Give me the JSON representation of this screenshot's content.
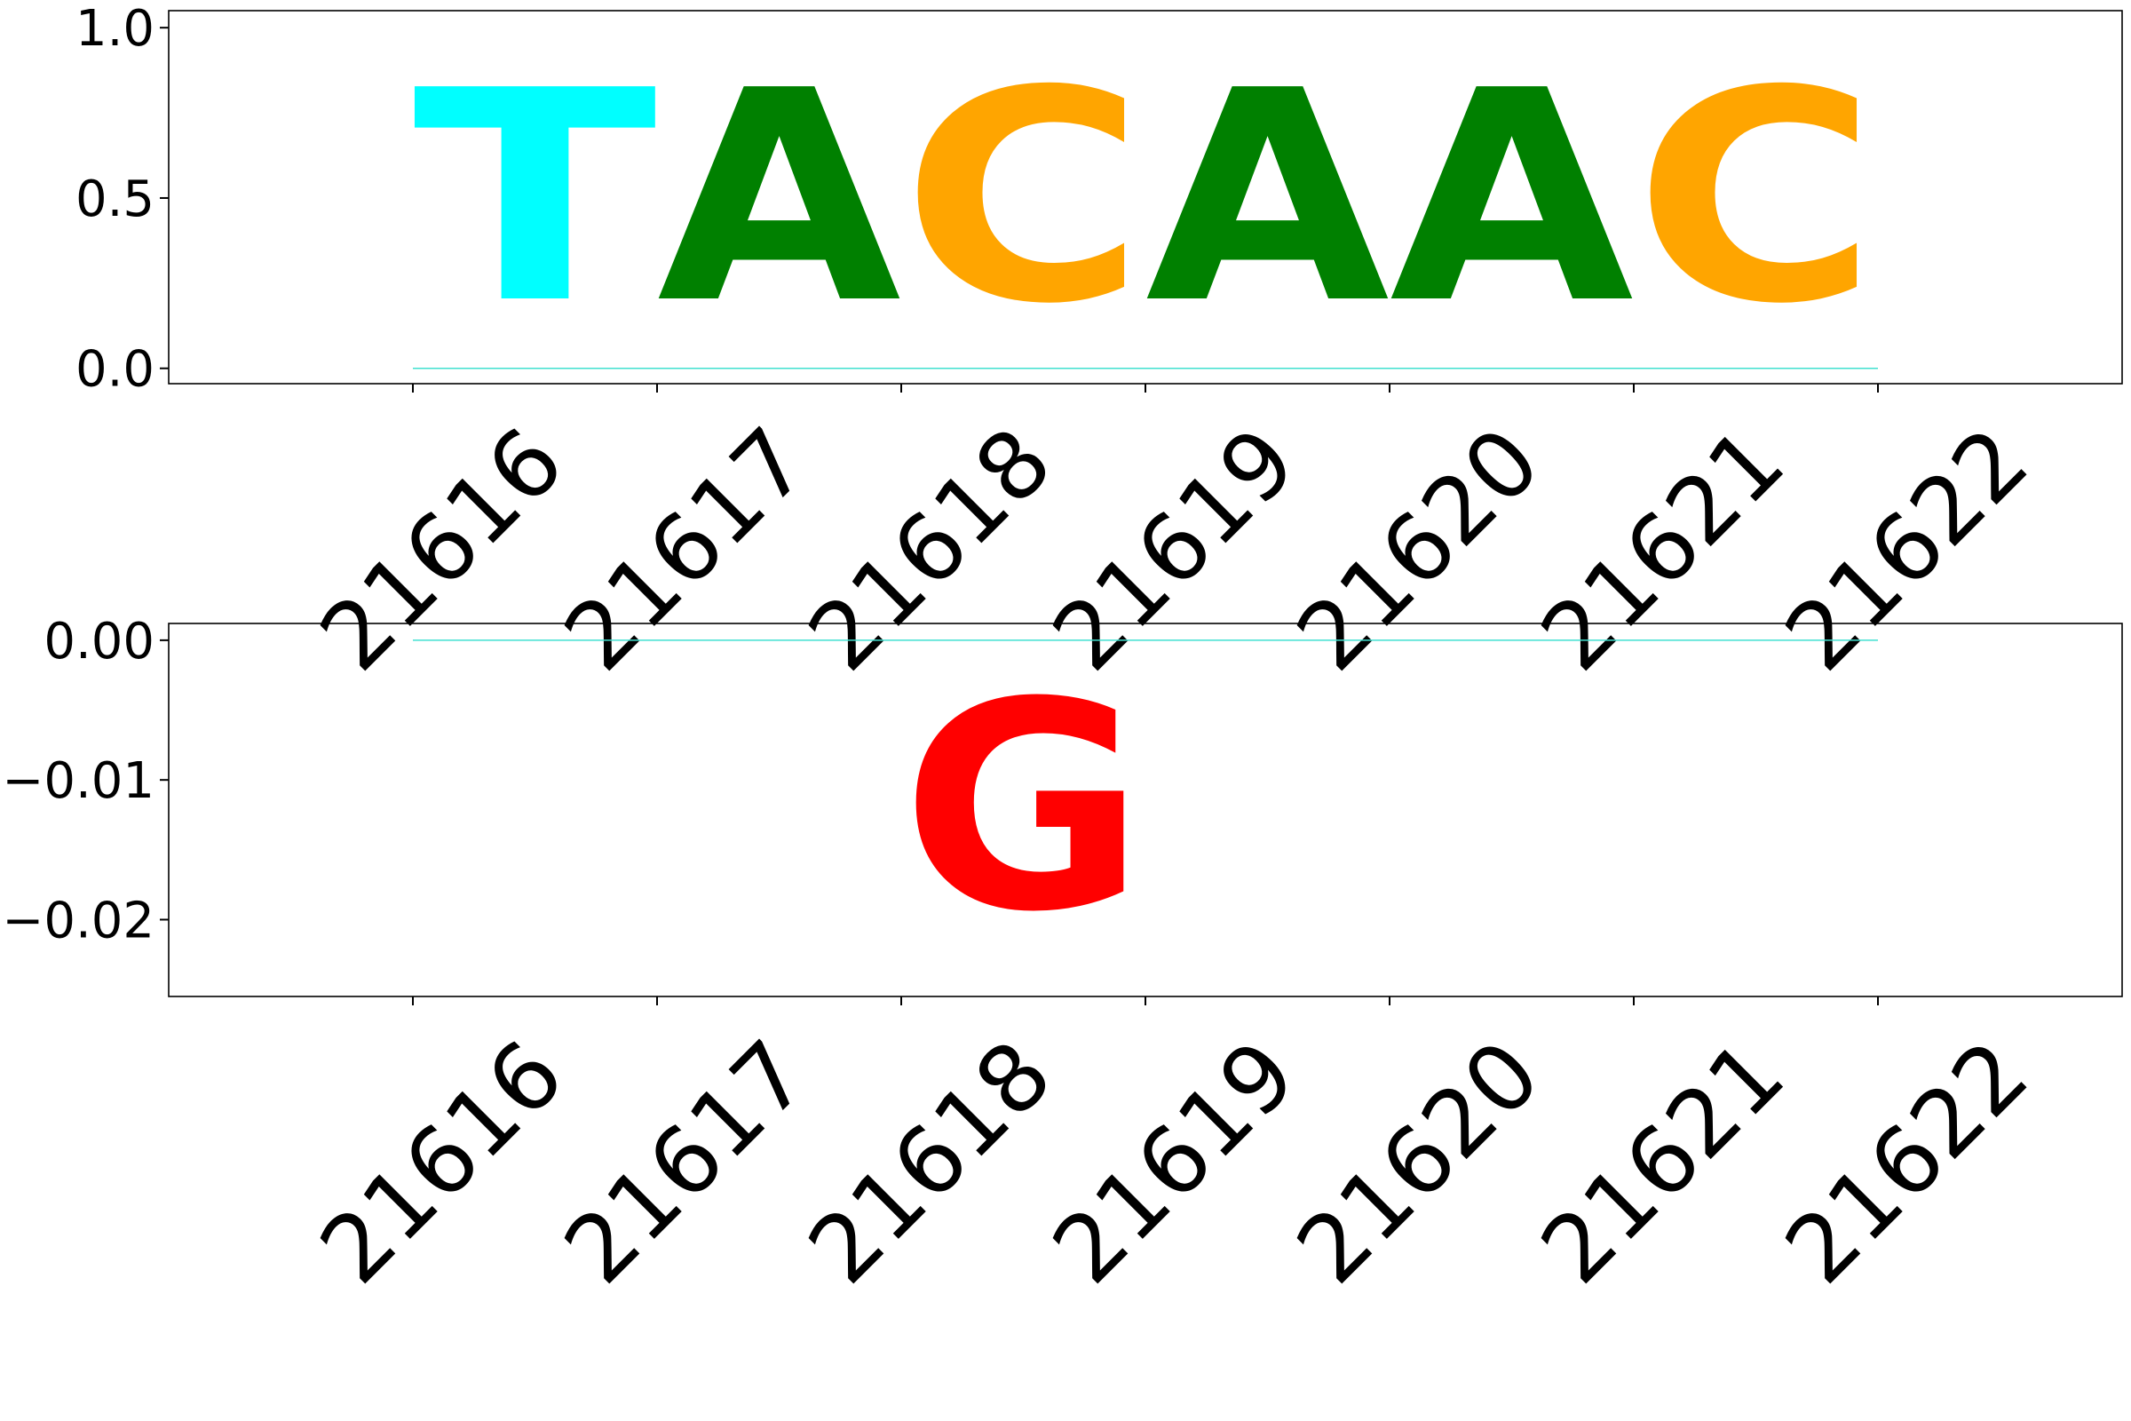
{
  "chart_data": [
    {
      "type": "sequence-logo",
      "title": "",
      "xlabel": "",
      "ylabel": "",
      "x_ticks": [
        "21616",
        "21617",
        "21618",
        "21619",
        "21620",
        "21621",
        "21622"
      ],
      "ylim": [
        -0.045,
        1.05
      ],
      "y_ticks": [
        0.0,
        0.5,
        1.0
      ],
      "y_tick_labels": [
        "0.0",
        "0.5",
        "1.0"
      ],
      "letters": [
        {
          "position": 21616,
          "base": "T",
          "value": 1.0,
          "color": "#00ffff"
        },
        {
          "position": 21617,
          "base": "A",
          "value": 1.0,
          "color": "#008000"
        },
        {
          "position": 21618,
          "base": "C",
          "value": 1.0,
          "color": "#ffa500"
        },
        {
          "position": 21619,
          "base": "A",
          "value": 1.0,
          "color": "#008000"
        },
        {
          "position": 21620,
          "base": "A",
          "value": 1.0,
          "color": "#008000"
        },
        {
          "position": 21621,
          "base": "C",
          "value": 1.0,
          "color": "#ffa500"
        }
      ]
    },
    {
      "type": "sequence-logo",
      "title": "",
      "xlabel": "",
      "ylabel": "",
      "x_ticks": [
        "21616",
        "21617",
        "21618",
        "21619",
        "21620",
        "21621",
        "21622"
      ],
      "ylim": [
        -0.0255,
        0.0012
      ],
      "y_ticks": [
        0.0,
        -0.01,
        -0.02
      ],
      "y_tick_labels": [
        "0.00",
        "−0.01",
        "−0.02"
      ],
      "letters": [
        {
          "position": 21618,
          "base": "G",
          "value": -0.024,
          "color": "#ff0000"
        }
      ]
    }
  ]
}
